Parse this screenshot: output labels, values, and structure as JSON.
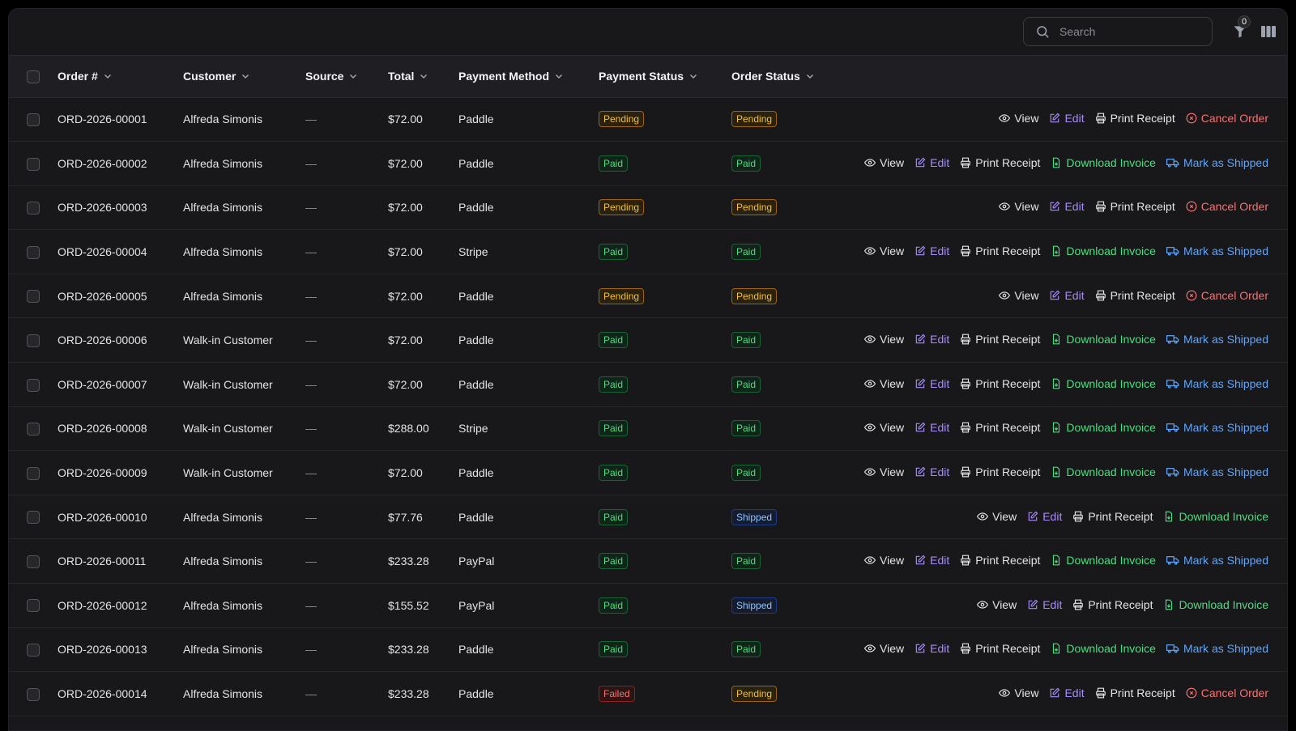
{
  "toolbar": {
    "search_placeholder": "Search",
    "filter_count": "0"
  },
  "columns": [
    {
      "key": "order",
      "label": "Order #"
    },
    {
      "key": "customer",
      "label": "Customer"
    },
    {
      "key": "source",
      "label": "Source"
    },
    {
      "key": "total",
      "label": "Total"
    },
    {
      "key": "payment_method",
      "label": "Payment Method"
    },
    {
      "key": "payment_status",
      "label": "Payment Status"
    },
    {
      "key": "order_status",
      "label": "Order Status"
    }
  ],
  "action_labels": {
    "view": "View",
    "edit": "Edit",
    "print": "Print Receipt",
    "cancel": "Cancel Order",
    "invoice": "Download Invoice",
    "ship": "Mark as Shipped"
  },
  "rows": [
    {
      "order": "ORD-2026-00001",
      "customer": "Alfreda Simonis",
      "source": "—",
      "total": "$72.00",
      "payment_method": "Paddle",
      "payment_status": "Pending",
      "order_status": "Pending",
      "actions": [
        "view",
        "edit",
        "print",
        "cancel"
      ]
    },
    {
      "order": "ORD-2026-00002",
      "customer": "Alfreda Simonis",
      "source": "—",
      "total": "$72.00",
      "payment_method": "Paddle",
      "payment_status": "Paid",
      "order_status": "Paid",
      "actions": [
        "view",
        "edit",
        "print",
        "invoice",
        "ship"
      ]
    },
    {
      "order": "ORD-2026-00003",
      "customer": "Alfreda Simonis",
      "source": "—",
      "total": "$72.00",
      "payment_method": "Paddle",
      "payment_status": "Pending",
      "order_status": "Pending",
      "actions": [
        "view",
        "edit",
        "print",
        "cancel"
      ]
    },
    {
      "order": "ORD-2026-00004",
      "customer": "Alfreda Simonis",
      "source": "—",
      "total": "$72.00",
      "payment_method": "Stripe",
      "payment_status": "Paid",
      "order_status": "Paid",
      "actions": [
        "view",
        "edit",
        "print",
        "invoice",
        "ship"
      ]
    },
    {
      "order": "ORD-2026-00005",
      "customer": "Alfreda Simonis",
      "source": "—",
      "total": "$72.00",
      "payment_method": "Paddle",
      "payment_status": "Pending",
      "order_status": "Pending",
      "actions": [
        "view",
        "edit",
        "print",
        "cancel"
      ]
    },
    {
      "order": "ORD-2026-00006",
      "customer": "Walk-in Customer",
      "source": "—",
      "total": "$72.00",
      "payment_method": "Paddle",
      "payment_status": "Paid",
      "order_status": "Paid",
      "actions": [
        "view",
        "edit",
        "print",
        "invoice",
        "ship"
      ]
    },
    {
      "order": "ORD-2026-00007",
      "customer": "Walk-in Customer",
      "source": "—",
      "total": "$72.00",
      "payment_method": "Paddle",
      "payment_status": "Paid",
      "order_status": "Paid",
      "actions": [
        "view",
        "edit",
        "print",
        "invoice",
        "ship"
      ]
    },
    {
      "order": "ORD-2026-00008",
      "customer": "Walk-in Customer",
      "source": "—",
      "total": "$288.00",
      "payment_method": "Stripe",
      "payment_status": "Paid",
      "order_status": "Paid",
      "actions": [
        "view",
        "edit",
        "print",
        "invoice",
        "ship"
      ]
    },
    {
      "order": "ORD-2026-00009",
      "customer": "Walk-in Customer",
      "source": "—",
      "total": "$72.00",
      "payment_method": "Paddle",
      "payment_status": "Paid",
      "order_status": "Paid",
      "actions": [
        "view",
        "edit",
        "print",
        "invoice",
        "ship"
      ]
    },
    {
      "order": "ORD-2026-00010",
      "customer": "Alfreda Simonis",
      "source": "—",
      "total": "$77.76",
      "payment_method": "Paddle",
      "payment_status": "Paid",
      "order_status": "Shipped",
      "actions": [
        "view",
        "edit",
        "print",
        "invoice"
      ]
    },
    {
      "order": "ORD-2026-00011",
      "customer": "Alfreda Simonis",
      "source": "—",
      "total": "$233.28",
      "payment_method": "PayPal",
      "payment_status": "Paid",
      "order_status": "Paid",
      "actions": [
        "view",
        "edit",
        "print",
        "invoice",
        "ship"
      ]
    },
    {
      "order": "ORD-2026-00012",
      "customer": "Alfreda Simonis",
      "source": "—",
      "total": "$155.52",
      "payment_method": "PayPal",
      "payment_status": "Paid",
      "order_status": "Shipped",
      "actions": [
        "view",
        "edit",
        "print",
        "invoice"
      ]
    },
    {
      "order": "ORD-2026-00013",
      "customer": "Alfreda Simonis",
      "source": "—",
      "total": "$233.28",
      "payment_method": "Paddle",
      "payment_status": "Paid",
      "order_status": "Paid",
      "actions": [
        "view",
        "edit",
        "print",
        "invoice",
        "ship"
      ]
    },
    {
      "order": "ORD-2026-00014",
      "customer": "Alfreda Simonis",
      "source": "—",
      "total": "$233.28",
      "payment_method": "Paddle",
      "payment_status": "Failed",
      "order_status": "Pending",
      "actions": [
        "view",
        "edit",
        "print",
        "cancel"
      ]
    }
  ]
}
